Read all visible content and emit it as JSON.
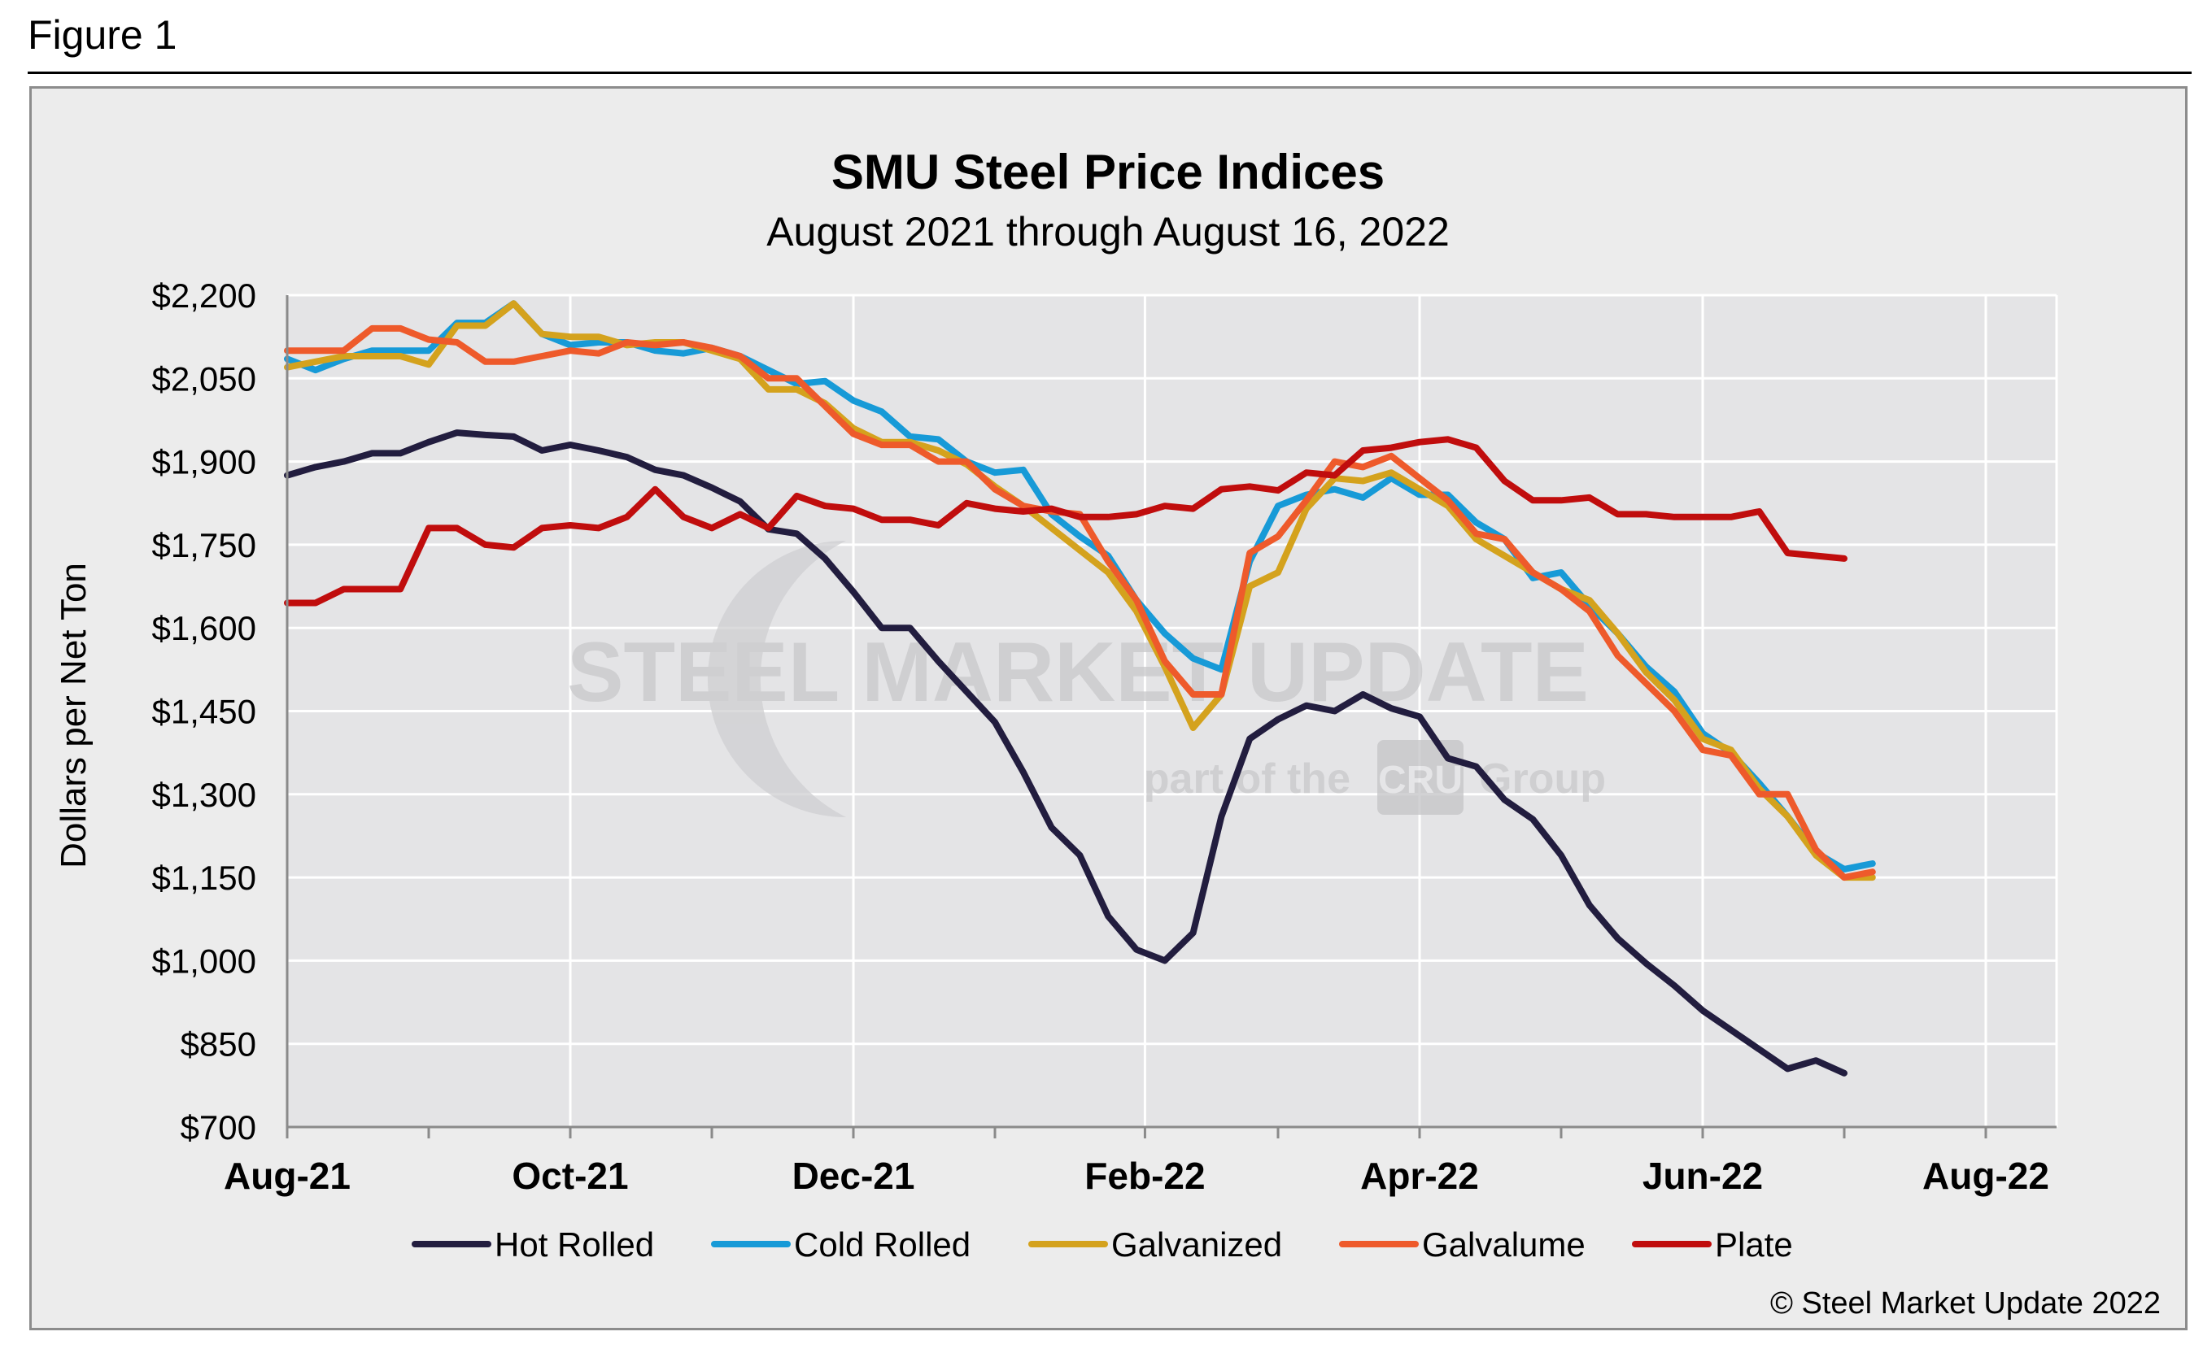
{
  "figure_label": "Figure 1",
  "copyright": "© Steel Market Update 2022",
  "watermark": {
    "brand": "STEEL MARKET UPDATE",
    "tagline_prefix": "part of the",
    "tagline_badge": "CRU",
    "tagline_suffix": "Group"
  },
  "colors": {
    "Hot Rolled": "#221d3f",
    "Cold Rolled": "#179ad7",
    "Galvanized": "#d4a21d",
    "Galvalume": "#ee5a2b",
    "Plate": "#c00d0d",
    "plot_background": "#e4e4e6",
    "grid": "#ffffff"
  },
  "chart_data": {
    "type": "line",
    "title": "SMU Steel Price Indices",
    "subtitle": "August 2021 through August 16, 2022",
    "ylabel": "Dollars per Net Ton",
    "xlabel": "",
    "ylim": [
      700,
      2200
    ],
    "yticks": [
      "$700",
      "$850",
      "$1,000",
      "$1,150",
      "$1,300",
      "$1,450",
      "$1,600",
      "$1,750",
      "$1,900",
      "$2,050",
      "$2,200"
    ],
    "ytick_values": [
      700,
      850,
      1000,
      1150,
      1300,
      1450,
      1600,
      1750,
      1900,
      2050,
      2200
    ],
    "xticks": [
      "Aug-21",
      "Oct-21",
      "Dec-21",
      "Feb-22",
      "Apr-22",
      "Jun-22",
      "Aug-22"
    ],
    "xtick_weeks": [
      0,
      10,
      20,
      30.3,
      40,
      50,
      60
    ],
    "x_minor_weeks": [
      5,
      15,
      25,
      35,
      45,
      55
    ],
    "x_range_weeks": [
      0,
      62.5
    ],
    "grid": true,
    "legend_position": "bottom",
    "x_week_start": "2021-08-02",
    "series": [
      {
        "name": "Hot Rolled",
        "values": [
          1875,
          1890,
          1900,
          1915,
          1915,
          1935,
          1952,
          1948,
          1945,
          1920,
          1930,
          1920,
          1908,
          1885,
          1875,
          1853,
          1828,
          1778,
          1770,
          1725,
          1665,
          1600,
          1600,
          1540,
          1485,
          1430,
          1340,
          1240,
          1190,
          1080,
          1020,
          1000,
          1050,
          1260,
          1400,
          1435,
          1460,
          1450,
          1480,
          1455,
          1440,
          1365,
          1350,
          1290,
          1255,
          1190,
          1100,
          1040,
          995,
          955,
          910,
          875,
          840,
          805,
          820,
          797
        ]
      },
      {
        "name": "Cold Rolled",
        "values": [
          2085,
          2065,
          2085,
          2100,
          2100,
          2100,
          2150,
          2150,
          2185,
          2130,
          2110,
          2115,
          2115,
          2100,
          2095,
          2105,
          2090,
          2065,
          2040,
          2045,
          2010,
          1990,
          1945,
          1940,
          1900,
          1880,
          1885,
          1805,
          1765,
          1730,
          1650,
          1590,
          1545,
          1525,
          1720,
          1820,
          1840,
          1850,
          1835,
          1870,
          1840,
          1840,
          1790,
          1760,
          1690,
          1700,
          1640,
          1590,
          1530,
          1485,
          1410,
          1375,
          1320,
          1260,
          1195,
          1165,
          1175
        ]
      },
      {
        "name": "Galvanized",
        "values": [
          2070,
          2080,
          2090,
          2090,
          2090,
          2075,
          2145,
          2145,
          2185,
          2130,
          2125,
          2125,
          2110,
          2115,
          2115,
          2100,
          2085,
          2030,
          2030,
          2005,
          1960,
          1935,
          1935,
          1920,
          1895,
          1855,
          1820,
          1780,
          1740,
          1700,
          1630,
          1530,
          1420,
          1480,
          1675,
          1700,
          1815,
          1870,
          1865,
          1880,
          1850,
          1820,
          1760,
          1730,
          1700,
          1670,
          1650,
          1590,
          1520,
          1470,
          1400,
          1380,
          1310,
          1260,
          1190,
          1150,
          1150
        ]
      },
      {
        "name": "Galvalume",
        "values": [
          2100,
          2100,
          2100,
          2140,
          2140,
          2120,
          2115,
          2080,
          2080,
          2090,
          2100,
          2095,
          2115,
          2110,
          2115,
          2105,
          2090,
          2050,
          2050,
          2000,
          1950,
          1930,
          1930,
          1900,
          1900,
          1850,
          1820,
          1810,
          1805,
          1720,
          1650,
          1540,
          1480,
          1480,
          1735,
          1765,
          1830,
          1900,
          1890,
          1910,
          1870,
          1830,
          1770,
          1760,
          1700,
          1670,
          1630,
          1550,
          1500,
          1450,
          1380,
          1370,
          1300,
          1300,
          1200,
          1150,
          1160
        ]
      },
      {
        "name": "Plate",
        "values": [
          1645,
          1645,
          1670,
          1670,
          1670,
          1780,
          1780,
          1750,
          1745,
          1780,
          1785,
          1780,
          1800,
          1850,
          1800,
          1780,
          1805,
          1780,
          1838,
          1820,
          1815,
          1795,
          1795,
          1785,
          1825,
          1815,
          1810,
          1815,
          1800,
          1800,
          1805,
          1820,
          1815,
          1850,
          1855,
          1848,
          1880,
          1875,
          1920,
          1925,
          1935,
          1940,
          1925,
          1865,
          1830,
          1830,
          1835,
          1805,
          1805,
          1800,
          1800,
          1800,
          1810,
          1735,
          1730,
          1725
        ]
      }
    ]
  }
}
